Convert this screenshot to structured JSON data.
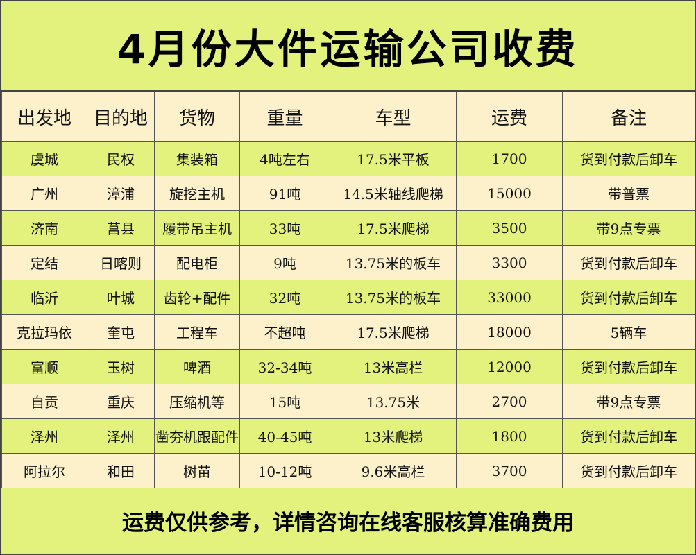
{
  "header": {
    "title": "4月份大件运输公司收费"
  },
  "table": {
    "columns": [
      "出发地",
      "目的地",
      "货物",
      "重量",
      "车型",
      "运费",
      "备注"
    ],
    "rows": [
      [
        "虞城",
        "民权",
        "集装箱",
        "4吨左右",
        "17.5米平板",
        "1700",
        "货到付款后卸车"
      ],
      [
        "广州",
        "漳浦",
        "旋挖主机",
        "91吨",
        "14.5米轴线爬梯",
        "15000",
        "带普票"
      ],
      [
        "济南",
        "莒县",
        "履带吊主机",
        "33吨",
        "17.5米爬梯",
        "3500",
        "带9点专票"
      ],
      [
        "定结",
        "日喀则",
        "配电柜",
        "9吨",
        "13.75米的板车",
        "3300",
        "货到付款后卸车"
      ],
      [
        "临沂",
        "叶城",
        "齿轮+配件",
        "32吨",
        "13.75米的板车",
        "33000",
        "货到付款后卸车"
      ],
      [
        "克拉玛依",
        "奎屯",
        "工程车",
        "不超吨",
        "17.5米爬梯",
        "18000",
        "5辆车"
      ],
      [
        "富顺",
        "玉树",
        "啤酒",
        "32-34吨",
        "13米高栏",
        "12000",
        "货到付款后卸车"
      ],
      [
        "自贡",
        "重庆",
        "压缩机等",
        "15吨",
        "13.75米",
        "2700",
        "带9点专票"
      ],
      [
        "泽州",
        "泽州",
        "凿夯机跟配件",
        "40-45吨",
        "13米爬梯",
        "1800",
        "货到付款后卸车"
      ],
      [
        "阿拉尔",
        "和田",
        "树苗",
        "10-12吨",
        "9.6米高栏",
        "3700",
        "货到付款后卸车"
      ]
    ]
  },
  "footer": {
    "note": "运费仅供参考，详情咨询在线客服核算准确费用"
  }
}
